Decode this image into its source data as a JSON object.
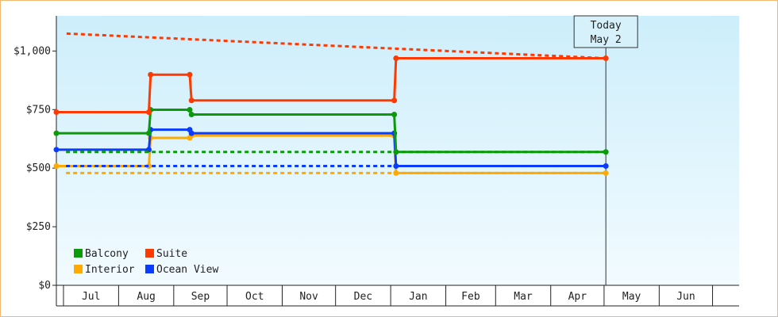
{
  "chart_data": {
    "type": "line",
    "step": true,
    "y_unit": "$",
    "ylim": [
      0,
      1150
    ],
    "y_ticks": [
      {
        "value": 0,
        "label": "$0"
      },
      {
        "value": 250,
        "label": "$250"
      },
      {
        "value": 500,
        "label": "$500"
      },
      {
        "value": 750,
        "label": "$750"
      },
      {
        "value": 1000,
        "label": "$1,000"
      }
    ],
    "x_months": [
      "Jul",
      "Aug",
      "Sep",
      "Oct",
      "Nov",
      "Dec",
      "Jan",
      "Feb",
      "Mar",
      "Apr",
      "May",
      "Jun"
    ],
    "today": {
      "line1": "Today",
      "line2": "May 2"
    },
    "legend": {
      "placement": "bottom-left"
    },
    "grid": false,
    "background_gradient": [
      "#cdeefb",
      "#f2fbff"
    ],
    "series": [
      {
        "name": "Balcony",
        "color": "#0a9a0a",
        "points": [
          {
            "x": "Jun 27",
            "y": 649
          },
          {
            "x": "Aug 18",
            "y": 649
          },
          {
            "x": "Aug 19",
            "y": 749
          },
          {
            "x": "Sep 10",
            "y": 749
          },
          {
            "x": "Sep 11",
            "y": 729
          },
          {
            "x": "Jan 3",
            "y": 729
          },
          {
            "x": "Jan 4",
            "y": 569
          },
          {
            "x": "May 2",
            "y": 569
          }
        ],
        "forecast": [
          {
            "x": "May 2",
            "y": 569
          },
          {
            "x": "Jul 1",
            "y": 569
          }
        ]
      },
      {
        "name": "Suite",
        "color": "#ff3a00",
        "points": [
          {
            "x": "Jun 27",
            "y": 739
          },
          {
            "x": "Aug 18",
            "y": 739
          },
          {
            "x": "Aug 19",
            "y": 899
          },
          {
            "x": "Sep 10",
            "y": 899
          },
          {
            "x": "Sep 11",
            "y": 789
          },
          {
            "x": "Jan 3",
            "y": 789
          },
          {
            "x": "Jan 4",
            "y": 969
          },
          {
            "x": "May 2",
            "y": 969
          }
        ],
        "forecast": [
          {
            "x": "May 2",
            "y": 969
          },
          {
            "x": "Jul 1",
            "y": 1075
          }
        ]
      },
      {
        "name": "Interior",
        "color": "#ffaa00",
        "points": [
          {
            "x": "Jun 27",
            "y": 509
          },
          {
            "x": "Aug 18",
            "y": 509
          },
          {
            "x": "Aug 19",
            "y": 629
          },
          {
            "x": "Sep 10",
            "y": 629
          },
          {
            "x": "Sep 11",
            "y": 639
          },
          {
            "x": "Jan 3",
            "y": 639
          },
          {
            "x": "Jan 4",
            "y": 479
          },
          {
            "x": "May 2",
            "y": 479
          }
        ],
        "forecast": [
          {
            "x": "May 2",
            "y": 479
          },
          {
            "x": "Jul 1",
            "y": 479
          }
        ]
      },
      {
        "name": "Ocean View",
        "color": "#0a3cff",
        "points": [
          {
            "x": "Jun 27",
            "y": 579
          },
          {
            "x": "Aug 18",
            "y": 579
          },
          {
            "x": "Aug 19",
            "y": 664
          },
          {
            "x": "Sep 10",
            "y": 664
          },
          {
            "x": "Sep 11",
            "y": 649
          },
          {
            "x": "Jan 3",
            "y": 649
          },
          {
            "x": "Jan 4",
            "y": 509
          },
          {
            "x": "May 2",
            "y": 509
          }
        ],
        "forecast": [
          {
            "x": "May 2",
            "y": 509
          },
          {
            "x": "Jul 1",
            "y": 509
          }
        ]
      }
    ]
  }
}
